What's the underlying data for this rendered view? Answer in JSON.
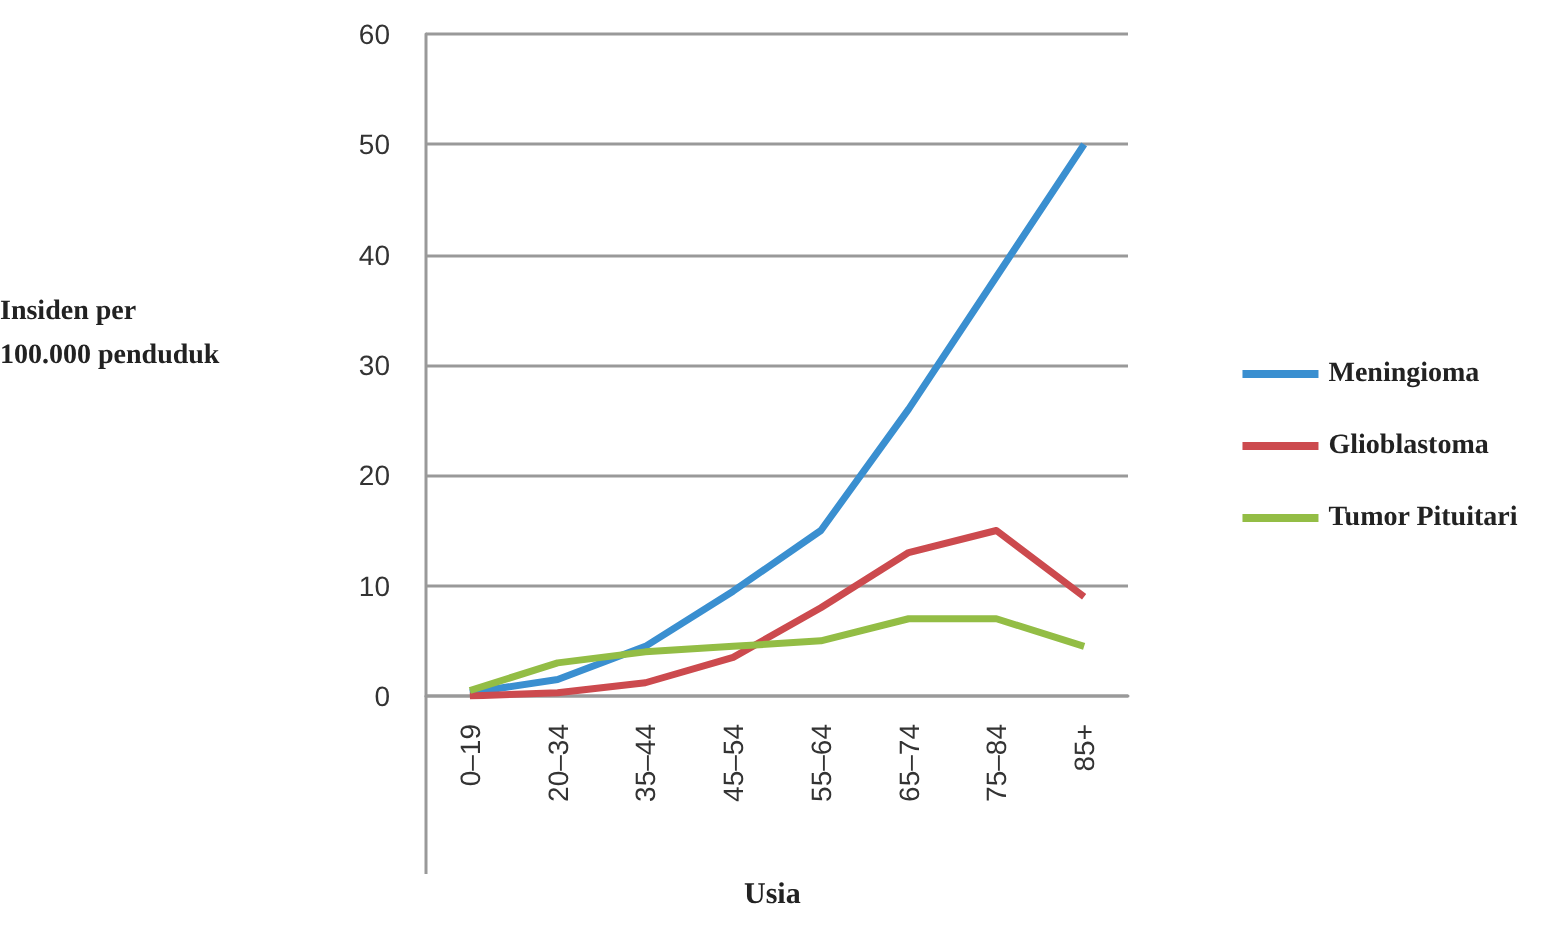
{
  "chart_data": {
    "type": "line",
    "xlabel": "Usia",
    "ylabel": "Insiden per\n100.000 penduduk",
    "categories": [
      "0–19",
      "20–34",
      "35–44",
      "45–54",
      "55–64",
      "65–74",
      "75–84",
      "85+"
    ],
    "series": [
      {
        "name": "Meningioma",
        "color": "#3a8fd0",
        "values": [
          0.3,
          1.5,
          4.5,
          9.5,
          15,
          26,
          38,
          50
        ]
      },
      {
        "name": "Glioblastoma",
        "color": "#cc4a4e",
        "values": [
          0,
          0.3,
          1.2,
          3.5,
          8,
          13,
          15,
          9
        ]
      },
      {
        "name": "Tumor Pituitari",
        "color": "#93bd45",
        "values": [
          0.5,
          3,
          4,
          4.5,
          5,
          7,
          7,
          4.5
        ]
      }
    ],
    "ylim": [
      0,
      60
    ],
    "yticks": [
      0,
      10,
      20,
      30,
      40,
      50,
      60
    ],
    "grid": "y",
    "legend": "right",
    "marker": "none",
    "line_style": "solid"
  }
}
